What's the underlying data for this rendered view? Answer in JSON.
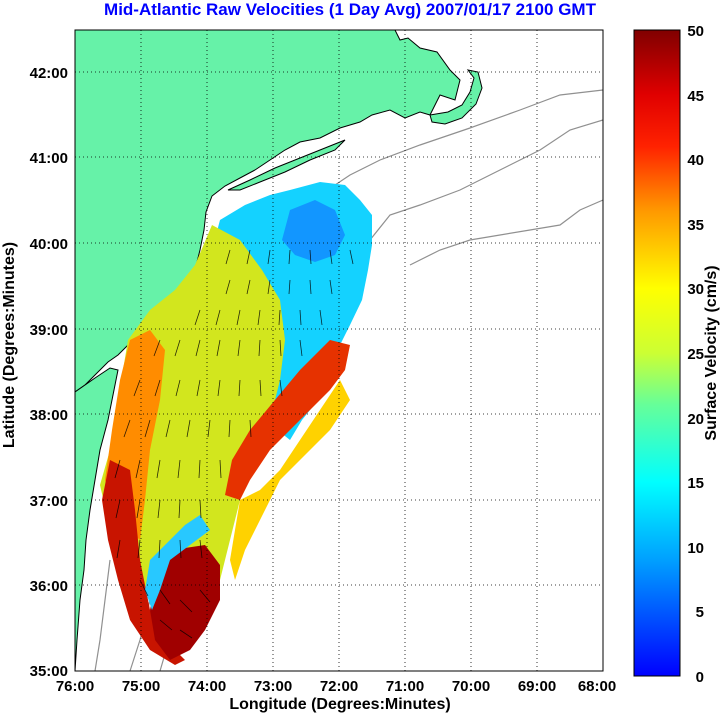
{
  "title": "Mid-Atlantic Raw Velocities (1 Day Avg) 2007/01/17 2100 GMT",
  "axes": {
    "xlabel": "Longitude (Degrees:Minutes)",
    "ylabel": "Latitude (Degrees:Minutes)",
    "x_ticks": [
      "76:00",
      "75:00",
      "74:00",
      "73:00",
      "72:00",
      "71:00",
      "70:00",
      "69:00",
      "68:00"
    ],
    "y_ticks": [
      "42:00",
      "41:00",
      "40:00",
      "39:00",
      "38:00",
      "37:00",
      "36:00",
      "35:00"
    ]
  },
  "colorbar": {
    "label": "Surface Velocity (cm/s)",
    "ticks": [
      "50",
      "45",
      "40",
      "35",
      "30",
      "25",
      "20",
      "15",
      "10",
      "5",
      "0"
    ],
    "range": [
      0,
      50
    ]
  },
  "colors": {
    "land": "#66f2a8",
    "coastline": "#000000",
    "bathymetry": "#909090",
    "grid": "#000000",
    "title": "#0000ff"
  }
}
